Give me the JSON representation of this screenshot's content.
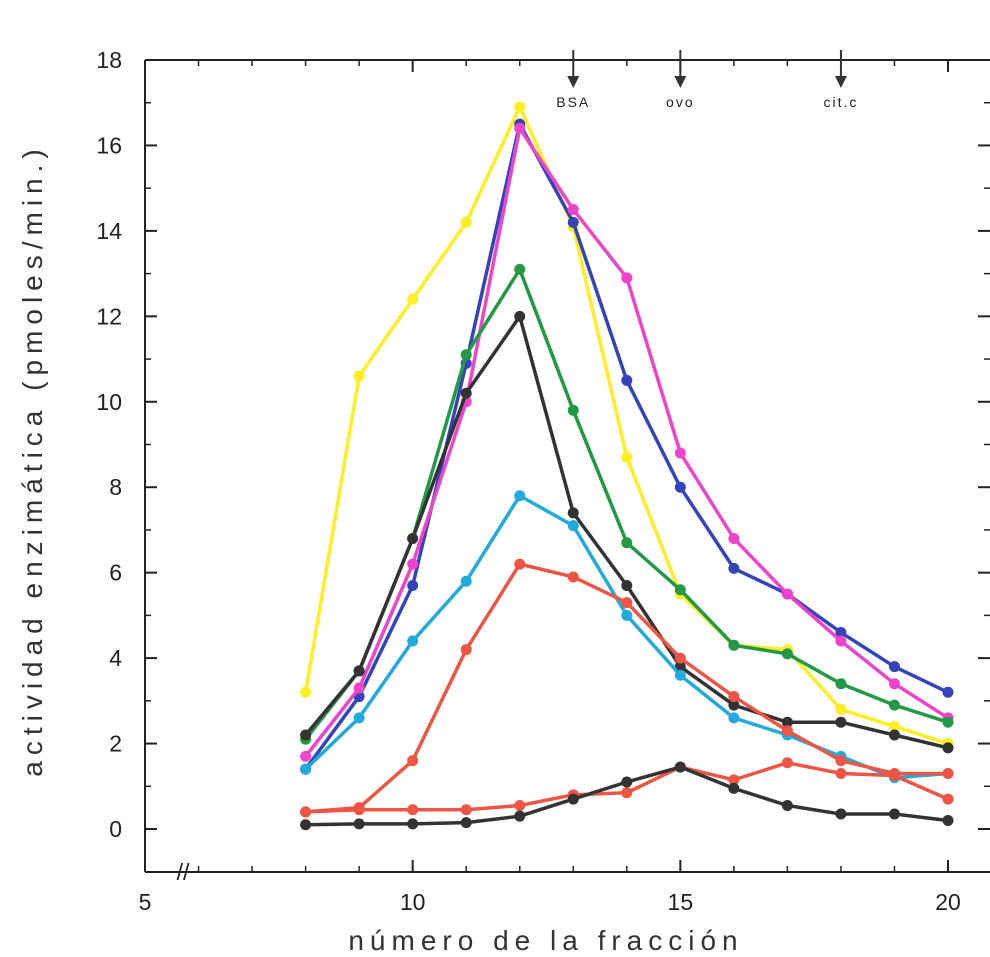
{
  "chart_data": {
    "type": "line",
    "xlabel": "número de la fracción",
    "ylabel": "actividad enzimática (pmoles/min.)",
    "xlim": [
      5,
      20
    ],
    "ylim": [
      -1,
      18
    ],
    "x_axis_break": "//",
    "x_ticks": [
      "5",
      "10",
      "15",
      "20"
    ],
    "y_ticks": [
      "0",
      "2",
      "4",
      "6",
      "8",
      "10",
      "12",
      "14",
      "16",
      "18"
    ],
    "grid": false,
    "x": [
      8,
      9,
      10,
      11,
      12,
      13,
      14,
      15,
      16,
      17,
      18,
      19,
      20
    ],
    "markers": [
      {
        "label": "BSA",
        "x": 13
      },
      {
        "label": "ovo",
        "x": 15
      },
      {
        "label": "cit.c",
        "x": 18
      }
    ],
    "series": [
      {
        "color": "#ffee22",
        "values": [
          3.2,
          10.6,
          12.4,
          14.2,
          16.9,
          14.1,
          8.7,
          5.5,
          4.3,
          4.2,
          2.8,
          2.4,
          2.0
        ]
      },
      {
        "color": "#3344bb",
        "values": [
          1.4,
          3.1,
          5.7,
          10.9,
          16.5,
          14.2,
          10.5,
          8.0,
          6.1,
          5.5,
          4.6,
          3.8,
          3.2
        ]
      },
      {
        "color": "#ee44cc",
        "values": [
          1.7,
          3.3,
          6.2,
          10.0,
          16.4,
          14.5,
          12.9,
          8.8,
          6.8,
          5.5,
          4.4,
          3.4,
          2.6
        ]
      },
      {
        "color": "#229944",
        "values": [
          2.1,
          3.7,
          6.8,
          11.1,
          13.1,
          9.8,
          6.7,
          5.6,
          4.3,
          4.1,
          3.4,
          2.9,
          2.5
        ]
      },
      {
        "color": "#333333",
        "values": [
          2.2,
          3.7,
          6.8,
          10.2,
          12.0,
          7.4,
          5.7,
          3.8,
          2.9,
          2.5,
          2.5,
          2.2,
          1.9
        ]
      },
      {
        "color": "#22aadd",
        "values": [
          1.4,
          2.6,
          4.4,
          5.8,
          7.8,
          7.1,
          5.0,
          3.6,
          2.6,
          2.2,
          1.7,
          1.2,
          1.3
        ]
      },
      {
        "color": "#ee5544",
        "values": [
          0.4,
          0.5,
          1.6,
          4.2,
          6.2,
          5.9,
          5.3,
          4.0,
          3.1,
          2.3,
          1.6,
          1.3,
          1.3
        ]
      },
      {
        "color": "#ee5544",
        "values": [
          0.4,
          0.45,
          0.45,
          0.45,
          0.55,
          0.8,
          0.85,
          1.45,
          1.15,
          1.55,
          1.3,
          1.25,
          0.7
        ]
      },
      {
        "color": "#333333",
        "values": [
          0.1,
          0.12,
          0.12,
          0.15,
          0.3,
          0.7,
          1.1,
          1.45,
          0.95,
          0.55,
          0.35,
          0.35,
          0.2
        ]
      }
    ]
  }
}
